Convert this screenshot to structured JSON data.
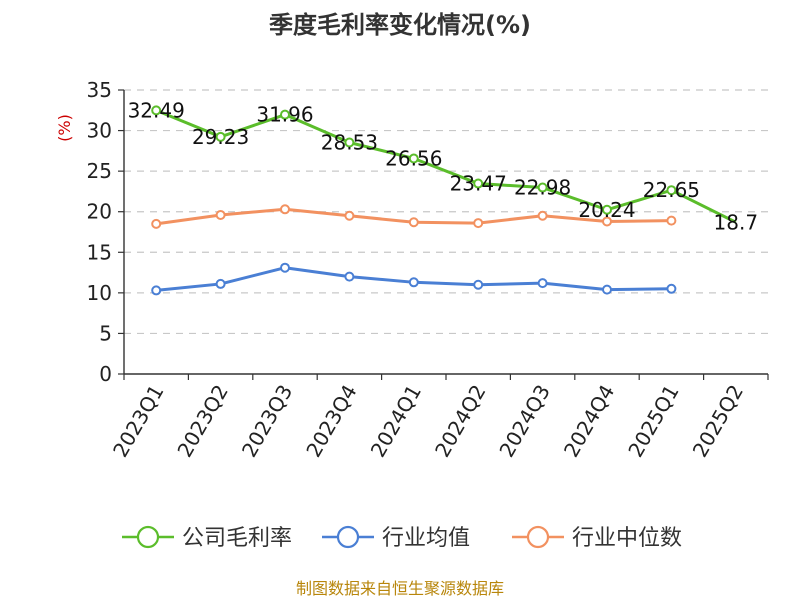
{
  "chart_data": {
    "type": "line",
    "title": "季度毛利率变化情况(%)",
    "ylabel": "(%)",
    "ylim": [
      0,
      35
    ],
    "yticks": [
      0,
      5,
      10,
      15,
      20,
      25,
      30,
      35
    ],
    "grid": true,
    "legend": "bottom",
    "categories": [
      "2023Q1",
      "2023Q2",
      "2023Q3",
      "2023Q4",
      "2024Q1",
      "2024Q2",
      "2024Q3",
      "2024Q4",
      "2025Q1",
      "2025Q2"
    ],
    "series": [
      {
        "name": "公司毛利率",
        "color": "#5bbd2b",
        "values": [
          32.49,
          29.23,
          31.96,
          28.53,
          26.56,
          23.47,
          22.98,
          20.24,
          22.65,
          18.7
        ],
        "labels": [
          "32.49",
          "29.23",
          "31.96",
          "28.53",
          "26.56",
          "23.47",
          "22.98",
          "20.24",
          "22.65",
          "18.7"
        ]
      },
      {
        "name": "行业均值",
        "color": "#4a7fd4",
        "values": [
          10.3,
          11.1,
          13.1,
          12.0,
          11.3,
          11.0,
          11.2,
          10.4,
          10.5,
          null
        ]
      },
      {
        "name": "行业中位数",
        "color": "#f29160",
        "values": [
          18.5,
          19.6,
          20.3,
          19.5,
          18.7,
          18.6,
          19.5,
          18.8,
          18.9,
          null
        ]
      }
    ]
  },
  "footer": {
    "source": "制图数据来自恒生聚源数据库"
  }
}
